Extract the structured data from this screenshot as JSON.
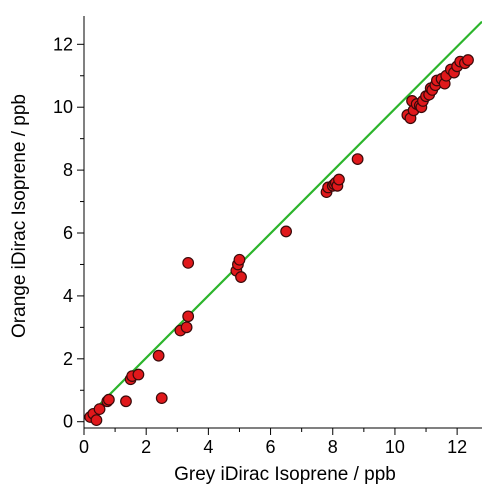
{
  "chart_data": {
    "type": "scatter",
    "title": "",
    "xlabel": "Grey iDirac Isoprene / ppb",
    "ylabel": "Orange iDirac Isoprene / ppb",
    "xlim": [
      0,
      12.8
    ],
    "ylim": [
      -0.2,
      12.9
    ],
    "x_ticks": [
      0,
      2,
      4,
      6,
      8,
      10,
      12
    ],
    "y_ticks": [
      0,
      2,
      4,
      6,
      8,
      10,
      12
    ],
    "grid": false,
    "marker_color": "#e0181b",
    "marker_edge_color": "#3a0a0a",
    "fit_line_color": "#2cb52c",
    "series": [
      {
        "points": [
          [
            0.2,
            0.15
          ],
          [
            0.3,
            0.25
          ],
          [
            0.4,
            0.05
          ],
          [
            0.5,
            0.4
          ],
          [
            0.75,
            0.65
          ],
          [
            0.8,
            0.7
          ],
          [
            1.35,
            0.65
          ],
          [
            1.5,
            1.35
          ],
          [
            1.55,
            1.45
          ],
          [
            1.75,
            1.5
          ],
          [
            2.4,
            2.1
          ],
          [
            2.5,
            0.75
          ],
          [
            3.1,
            2.9
          ],
          [
            3.3,
            3.0
          ],
          [
            3.35,
            3.35
          ],
          [
            3.35,
            5.05
          ],
          [
            4.9,
            4.8
          ],
          [
            4.95,
            5.0
          ],
          [
            5.0,
            5.15
          ],
          [
            5.05,
            4.6
          ],
          [
            6.5,
            6.05
          ],
          [
            7.8,
            7.3
          ],
          [
            7.85,
            7.45
          ],
          [
            8.0,
            7.5
          ],
          [
            8.05,
            7.55
          ],
          [
            8.1,
            7.6
          ],
          [
            8.15,
            7.5
          ],
          [
            8.2,
            7.7
          ],
          [
            8.8,
            8.35
          ],
          [
            10.4,
            9.75
          ],
          [
            10.5,
            9.65
          ],
          [
            10.55,
            10.2
          ],
          [
            10.6,
            9.9
          ],
          [
            10.7,
            10.1
          ],
          [
            10.8,
            10.05
          ],
          [
            10.85,
            10.0
          ],
          [
            10.9,
            10.2
          ],
          [
            11.0,
            10.35
          ],
          [
            11.1,
            10.4
          ],
          [
            11.15,
            10.6
          ],
          [
            11.2,
            10.55
          ],
          [
            11.3,
            10.7
          ],
          [
            11.35,
            10.85
          ],
          [
            11.5,
            10.9
          ],
          [
            11.6,
            10.75
          ],
          [
            11.65,
            11.0
          ],
          [
            11.8,
            11.2
          ],
          [
            11.9,
            11.1
          ],
          [
            12.0,
            11.3
          ],
          [
            12.1,
            11.45
          ],
          [
            12.25,
            11.4
          ],
          [
            12.35,
            11.5
          ]
        ]
      }
    ],
    "fit_line": {
      "slope": 0.99,
      "intercept": 0.05
    }
  }
}
